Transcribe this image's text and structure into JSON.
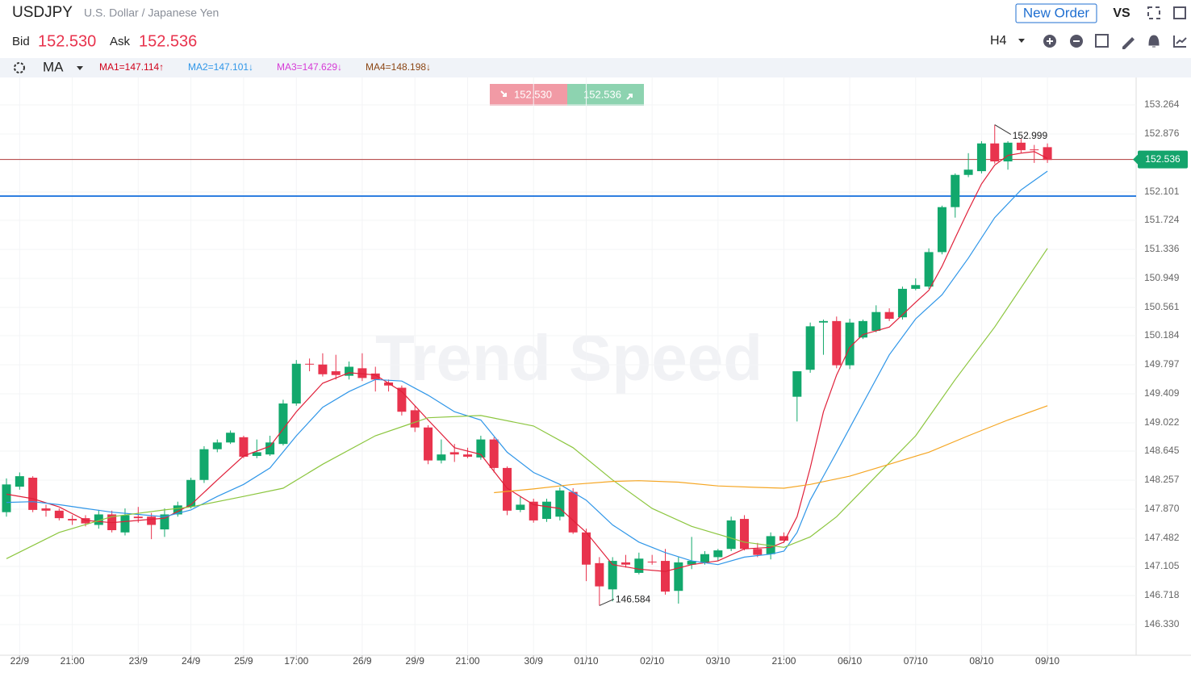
{
  "header": {
    "symbol": "USDJPY",
    "description": "U.S. Dollar / Japanese Yen",
    "new_order": "New Order",
    "vs": "VS",
    "bid_label": "Bid",
    "bid": "152.530",
    "ask_label": "Ask",
    "ask": "152.536",
    "timeframe": "H4"
  },
  "indicator": {
    "name": "MA"
  },
  "chart_data": {
    "type": "candlestick",
    "watermark": "Trend Speed",
    "categories": [
      null,
      "22/9",
      null,
      null,
      null,
      "21:00",
      null,
      null,
      null,
      null,
      "23/9",
      null,
      null,
      null,
      "24/9",
      null,
      null,
      null,
      "25/9",
      null,
      null,
      null,
      "17:00",
      null,
      null,
      null,
      null,
      "26/9",
      null,
      null,
      null,
      "29/9",
      null,
      null,
      null,
      "21:00",
      null,
      null,
      null,
      null,
      "30/9",
      null,
      null,
      null,
      "01/10",
      null,
      null,
      null,
      null,
      "02/10",
      null,
      null,
      null,
      null,
      "03/10",
      null,
      null,
      null,
      null,
      "21:00",
      null,
      null,
      null,
      null,
      "06/10",
      null,
      null,
      null,
      null,
      "07/10",
      null,
      null,
      null,
      null,
      "08/10",
      null,
      null,
      null,
      null,
      "09/10"
    ],
    "open": [
      147.83,
      148.17,
      148.29,
      147.88,
      147.85,
      147.74,
      147.75,
      147.66,
      147.8,
      147.56,
      147.77,
      147.77,
      147.6,
      147.8,
      147.9,
      148.26,
      148.67,
      148.76,
      148.83,
      148.58,
      148.6,
      148.74,
      149.28,
      149.81,
      149.8,
      149.71,
      149.65,
      149.75,
      149.68,
      149.56,
      149.49,
      149.19,
      148.96,
      148.52,
      148.63,
      148.6,
      148.56,
      148.8,
      148.42,
      147.86,
      147.97,
      147.74,
      147.77,
      148.1,
      147.56,
      147.15,
      146.8,
      147.16,
      147.02,
      147.17,
      147.18,
      146.78,
      147.13,
      147.16,
      147.23,
      147.34,
      147.74,
      147.34,
      147.27,
      147.51,
      149.37,
      149.73,
      150.36,
      150.38,
      149.79,
      150.16,
      150.25,
      150.5,
      150.43,
      150.81,
      150.84,
      151.3,
      151.9,
      152.33,
      152.38,
      152.75,
      152.51,
      152.76,
      152.67,
      152.7
    ],
    "high": [
      148.28,
      148.36,
      148.31,
      147.93,
      147.88,
      147.79,
      147.79,
      147.86,
      147.85,
      147.88,
      147.9,
      147.82,
      147.88,
      147.97,
      148.29,
      148.71,
      148.8,
      148.92,
      148.85,
      148.8,
      148.85,
      149.33,
      149.86,
      149.88,
      149.95,
      149.93,
      149.84,
      149.95,
      149.77,
      149.6,
      149.52,
      149.25,
      148.99,
      148.8,
      148.74,
      148.69,
      148.85,
      148.83,
      148.44,
      148.04,
      148.01,
      148.01,
      148.16,
      148.15,
      147.61,
      147.23,
      147.23,
      147.26,
      147.29,
      147.26,
      147.34,
      147.23,
      147.5,
      147.31,
      147.34,
      147.77,
      147.79,
      147.42,
      147.56,
      147.56,
      149.71,
      150.36,
      150.4,
      150.44,
      150.41,
      150.4,
      150.59,
      150.55,
      150.84,
      150.95,
      151.35,
      151.92,
      152.35,
      152.62,
      152.78,
      152.999,
      152.78,
      152.81,
      152.73,
      152.75
    ],
    "low": [
      147.77,
      148.13,
      147.83,
      147.77,
      147.72,
      147.66,
      147.64,
      147.61,
      147.56,
      147.52,
      147.69,
      147.47,
      147.5,
      147.77,
      147.88,
      148.22,
      148.63,
      148.74,
      148.55,
      148.55,
      148.58,
      148.72,
      149.25,
      149.71,
      149.64,
      149.6,
      149.6,
      149.58,
      149.44,
      149.44,
      149.12,
      148.9,
      148.47,
      148.48,
      148.5,
      148.55,
      148.53,
      148.36,
      147.79,
      147.83,
      147.69,
      147.7,
      147.72,
      147.54,
      146.91,
      146.584,
      146.64,
      147.09,
      147.0,
      147.13,
      146.73,
      146.61,
      147.07,
      147.13,
      147.18,
      147.31,
      147.32,
      147.23,
      147.2,
      147.42,
      149.04,
      149.69,
      149.93,
      149.75,
      149.74,
      150.14,
      150.23,
      150.38,
      150.4,
      150.79,
      150.81,
      151.27,
      151.76,
      152.3,
      152.35,
      152.48,
      152.4,
      152.62,
      152.49,
      152.49
    ],
    "close": [
      148.2,
      148.31,
      147.86,
      147.85,
      147.75,
      147.72,
      147.68,
      147.8,
      147.59,
      147.79,
      147.75,
      147.66,
      147.8,
      147.92,
      148.26,
      148.67,
      148.76,
      148.89,
      148.57,
      148.63,
      148.76,
      149.28,
      149.81,
      149.8,
      149.67,
      149.66,
      149.77,
      149.62,
      149.6,
      149.52,
      149.17,
      148.96,
      148.52,
      148.6,
      148.6,
      148.57,
      148.8,
      148.42,
      147.85,
      147.93,
      147.72,
      147.97,
      148.12,
      147.56,
      147.13,
      146.84,
      147.18,
      147.13,
      147.21,
      147.16,
      146.77,
      147.16,
      147.18,
      147.27,
      147.32,
      147.72,
      147.34,
      147.26,
      147.51,
      147.45,
      149.71,
      150.31,
      150.38,
      149.79,
      150.36,
      150.38,
      150.5,
      150.41,
      150.81,
      150.86,
      151.3,
      151.9,
      152.33,
      152.4,
      152.75,
      152.51,
      152.76,
      152.66,
      152.66,
      152.53
    ],
    "up_color": "#12a86c",
    "down_color": "#e8334d",
    "series": [
      {
        "name": "MA1=147.114↑",
        "color": "#e0203a",
        "label_color": "#d0021b",
        "x": [
          0,
          2,
          4,
          6,
          8,
          10,
          12,
          14,
          16,
          18,
          20,
          22,
          24,
          26,
          28,
          30,
          32,
          34,
          36,
          38,
          40,
          42,
          44,
          46,
          48,
          50,
          52,
          54,
          56,
          58,
          59,
          60,
          61,
          62,
          63,
          64,
          65,
          66,
          67,
          69,
          70,
          71,
          72,
          73,
          74,
          75,
          76,
          77,
          78,
          79
        ],
        "values": [
          148.07,
          148.01,
          147.9,
          147.72,
          147.69,
          147.72,
          147.75,
          147.93,
          148.26,
          148.58,
          148.71,
          149.17,
          149.55,
          149.69,
          149.66,
          149.44,
          149.06,
          148.69,
          148.6,
          148.15,
          147.93,
          147.88,
          147.56,
          147.13,
          147.07,
          147.04,
          147.13,
          147.18,
          147.34,
          147.36,
          147.43,
          147.77,
          148.42,
          149.17,
          149.66,
          150.03,
          150.2,
          150.25,
          150.3,
          150.63,
          150.79,
          151.11,
          151.49,
          151.86,
          152.21,
          152.46,
          152.59,
          152.62,
          152.64,
          152.55
        ]
      },
      {
        "name": "MA2=147.101↓",
        "color": "#2f96e8",
        "label_color": "#2f96e8",
        "x": [
          0,
          2,
          4,
          6,
          8,
          10,
          12,
          14,
          16,
          18,
          20,
          22,
          24,
          26,
          28,
          30,
          32,
          34,
          36,
          38,
          40,
          42,
          44,
          46,
          48,
          50,
          52,
          54,
          56,
          58,
          59,
          60,
          61,
          63,
          65,
          67,
          69,
          71,
          73,
          75,
          77,
          79
        ],
        "values": [
          147.96,
          147.97,
          147.93,
          147.88,
          147.83,
          147.8,
          147.77,
          147.86,
          148.04,
          148.2,
          148.42,
          148.85,
          149.23,
          149.44,
          149.6,
          149.58,
          149.39,
          149.17,
          149.06,
          148.63,
          148.36,
          148.2,
          147.99,
          147.66,
          147.43,
          147.29,
          147.18,
          147.13,
          147.23,
          147.27,
          147.31,
          147.56,
          147.99,
          148.63,
          149.28,
          149.93,
          150.41,
          150.73,
          151.22,
          151.76,
          152.13,
          152.38
        ]
      },
      {
        "name": "MA3=147.629↓",
        "color": "#8cc63f",
        "label_color": "#d63ad6",
        "x": [
          0,
          4,
          8,
          12,
          14,
          18,
          21,
          24,
          28,
          32,
          36,
          40,
          43,
          46,
          49,
          52,
          56,
          59,
          61,
          63,
          66,
          69,
          72,
          75,
          79
        ],
        "values": [
          147.21,
          147.56,
          147.77,
          147.86,
          147.9,
          148.04,
          148.15,
          148.47,
          148.85,
          149.09,
          149.12,
          148.98,
          148.69,
          148.26,
          147.88,
          147.64,
          147.43,
          147.36,
          147.5,
          147.77,
          148.31,
          148.85,
          149.6,
          150.3,
          151.35
        ]
      },
      {
        "name": "MA4=148.198↓",
        "color": "#f5a623",
        "label_color": "#8b4513",
        "x": [
          37,
          40,
          43,
          46,
          48,
          51,
          54,
          57,
          59,
          61,
          64,
          67,
          70,
          73,
          76,
          79
        ],
        "values": [
          148.09,
          148.14,
          148.2,
          148.24,
          148.25,
          148.23,
          148.18,
          148.16,
          148.15,
          148.2,
          148.31,
          148.47,
          148.63,
          148.85,
          149.06,
          149.25
        ]
      }
    ],
    "current_price": 152.536,
    "horizontal_line": 152.047,
    "ylim": [
      145.921,
      153.63
    ],
    "yticks": [
      153.264,
      152.876,
      152.101,
      151.724,
      151.336,
      150.949,
      150.561,
      150.184,
      149.797,
      149.409,
      149.022,
      148.645,
      148.257,
      {
        "value": 147.87,
        "label": "147.870"
      },
      147.482,
      147.105,
      146.718,
      {
        "value": 146.33,
        "label": "146.330"
      }
    ],
    "grid": true
  }
}
